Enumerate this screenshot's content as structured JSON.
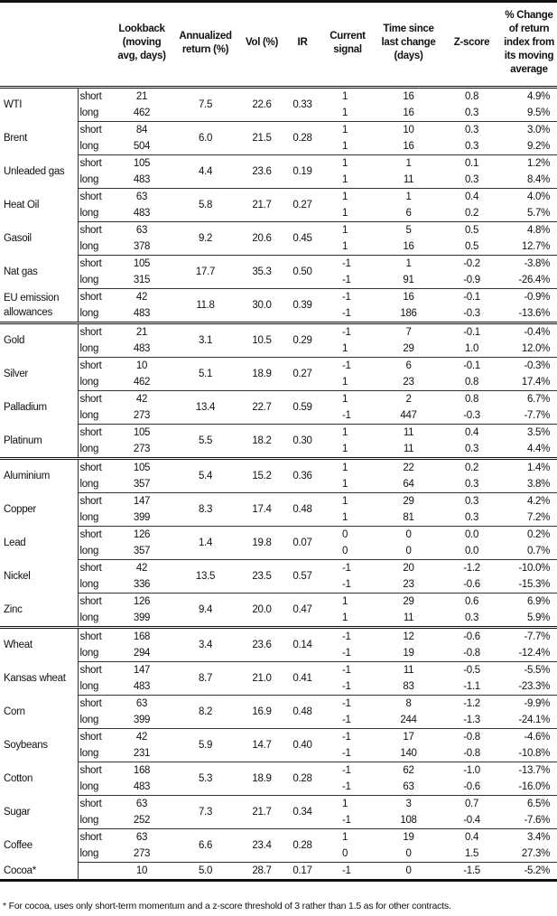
{
  "headers": [
    "",
    "",
    "Lookback (moving avg, days)",
    "Annualized return (%)",
    "Vol (%)",
    "IR",
    "Current signal",
    "Time since last change (days)",
    "Z-score",
    "% Change of return index from its moving average"
  ],
  "groups": [
    [
      {
        "name": "WTI",
        "ann": "7.5",
        "vol": "22.6",
        "ir": "0.33",
        "rows": [
          {
            "kind": "short",
            "lookback": "21",
            "signal": "1",
            "time": "16",
            "z": "0.8",
            "pct": "4.9%"
          },
          {
            "kind": "long",
            "lookback": "462",
            "signal": "1",
            "time": "16",
            "z": "0.3",
            "pct": "9.5%"
          }
        ]
      },
      {
        "name": "Brent",
        "ann": "6.0",
        "vol": "21.5",
        "ir": "0.28",
        "rows": [
          {
            "kind": "short",
            "lookback": "84",
            "signal": "1",
            "time": "10",
            "z": "0.3",
            "pct": "3.0%"
          },
          {
            "kind": "long",
            "lookback": "504",
            "signal": "1",
            "time": "16",
            "z": "0.3",
            "pct": "9.2%"
          }
        ]
      },
      {
        "name": "Unleaded gas",
        "ann": "4.4",
        "vol": "23.6",
        "ir": "0.19",
        "rows": [
          {
            "kind": "short",
            "lookback": "105",
            "signal": "1",
            "time": "1",
            "z": "0.1",
            "pct": "1.2%"
          },
          {
            "kind": "long",
            "lookback": "483",
            "signal": "1",
            "time": "11",
            "z": "0.3",
            "pct": "8.4%"
          }
        ]
      },
      {
        "name": "Heat Oil",
        "ann": "5.8",
        "vol": "21.7",
        "ir": "0.27",
        "rows": [
          {
            "kind": "short",
            "lookback": "63",
            "signal": "1",
            "time": "1",
            "z": "0.4",
            "pct": "4.0%"
          },
          {
            "kind": "long",
            "lookback": "483",
            "signal": "1",
            "time": "6",
            "z": "0.2",
            "pct": "5.7%"
          }
        ]
      },
      {
        "name": "Gasoil",
        "ann": "9.2",
        "vol": "20.6",
        "ir": "0.45",
        "rows": [
          {
            "kind": "short",
            "lookback": "63",
            "signal": "1",
            "time": "5",
            "z": "0.5",
            "pct": "4.8%"
          },
          {
            "kind": "long",
            "lookback": "378",
            "signal": "1",
            "time": "16",
            "z": "0.5",
            "pct": "12.7%"
          }
        ]
      },
      {
        "name": "Nat gas",
        "ann": "17.7",
        "vol": "35.3",
        "ir": "0.50",
        "rows": [
          {
            "kind": "short",
            "lookback": "105",
            "signal": "-1",
            "time": "1",
            "z": "-0.2",
            "pct": "-3.8%"
          },
          {
            "kind": "long",
            "lookback": "315",
            "signal": "-1",
            "time": "91",
            "z": "-0.9",
            "pct": "-26.4%"
          }
        ]
      },
      {
        "name": "EU emission allowances",
        "ann": "11.8",
        "vol": "30.0",
        "ir": "0.39",
        "rows": [
          {
            "kind": "short",
            "lookback": "42",
            "signal": "-1",
            "time": "16",
            "z": "-0.1",
            "pct": "-0.9%"
          },
          {
            "kind": "long",
            "lookback": "483",
            "signal": "-1",
            "time": "186",
            "z": "-0.3",
            "pct": "-13.6%"
          }
        ]
      }
    ],
    [
      {
        "name": "Gold",
        "ann": "3.1",
        "vol": "10.5",
        "ir": "0.29",
        "rows": [
          {
            "kind": "short",
            "lookback": "21",
            "signal": "-1",
            "time": "7",
            "z": "-0.1",
            "pct": "-0.4%"
          },
          {
            "kind": "long",
            "lookback": "483",
            "signal": "1",
            "time": "29",
            "z": "1.0",
            "pct": "12.0%"
          }
        ]
      },
      {
        "name": "Silver",
        "ann": "5.1",
        "vol": "18.9",
        "ir": "0.27",
        "rows": [
          {
            "kind": "short",
            "lookback": "10",
            "signal": "-1",
            "time": "6",
            "z": "-0.1",
            "pct": "-0.3%"
          },
          {
            "kind": "long",
            "lookback": "462",
            "signal": "1",
            "time": "23",
            "z": "0.8",
            "pct": "17.4%"
          }
        ]
      },
      {
        "name": "Palladium",
        "ann": "13.4",
        "vol": "22.7",
        "ir": "0.59",
        "rows": [
          {
            "kind": "short",
            "lookback": "42",
            "signal": "1",
            "time": "2",
            "z": "0.8",
            "pct": "6.7%"
          },
          {
            "kind": "long",
            "lookback": "273",
            "signal": "-1",
            "time": "447",
            "z": "-0.3",
            "pct": "-7.7%"
          }
        ]
      },
      {
        "name": "Platinum",
        "ann": "5.5",
        "vol": "18.2",
        "ir": "0.30",
        "rows": [
          {
            "kind": "short",
            "lookback": "105",
            "signal": "1",
            "time": "11",
            "z": "0.4",
            "pct": "3.5%"
          },
          {
            "kind": "long",
            "lookback": "273",
            "signal": "1",
            "time": "11",
            "z": "0.3",
            "pct": "4.4%"
          }
        ]
      }
    ],
    [
      {
        "name": "Aluminium",
        "ann": "5.4",
        "vol": "15.2",
        "ir": "0.36",
        "rows": [
          {
            "kind": "short",
            "lookback": "105",
            "signal": "1",
            "time": "22",
            "z": "0.2",
            "pct": "1.4%"
          },
          {
            "kind": "long",
            "lookback": "357",
            "signal": "1",
            "time": "64",
            "z": "0.3",
            "pct": "3.8%"
          }
        ]
      },
      {
        "name": "Copper",
        "ann": "8.3",
        "vol": "17.4",
        "ir": "0.48",
        "rows": [
          {
            "kind": "short",
            "lookback": "147",
            "signal": "1",
            "time": "29",
            "z": "0.3",
            "pct": "4.2%"
          },
          {
            "kind": "long",
            "lookback": "399",
            "signal": "1",
            "time": "81",
            "z": "0.3",
            "pct": "7.2%"
          }
        ]
      },
      {
        "name": "Lead",
        "ann": "1.4",
        "vol": "19.8",
        "ir": "0.07",
        "rows": [
          {
            "kind": "short",
            "lookback": "126",
            "signal": "0",
            "time": "0",
            "z": "0.0",
            "pct": "0.2%"
          },
          {
            "kind": "long",
            "lookback": "357",
            "signal": "0",
            "time": "0",
            "z": "0.0",
            "pct": "0.7%"
          }
        ]
      },
      {
        "name": "Nickel",
        "ann": "13.5",
        "vol": "23.5",
        "ir": "0.57",
        "rows": [
          {
            "kind": "short",
            "lookback": "42",
            "signal": "-1",
            "time": "20",
            "z": "-1.2",
            "pct": "-10.0%"
          },
          {
            "kind": "long",
            "lookback": "336",
            "signal": "-1",
            "time": "23",
            "z": "-0.6",
            "pct": "-15.3%"
          }
        ]
      },
      {
        "name": "Zinc",
        "ann": "9.4",
        "vol": "20.0",
        "ir": "0.47",
        "rows": [
          {
            "kind": "short",
            "lookback": "126",
            "signal": "1",
            "time": "29",
            "z": "0.6",
            "pct": "6.9%"
          },
          {
            "kind": "long",
            "lookback": "399",
            "signal": "1",
            "time": "11",
            "z": "0.3",
            "pct": "5.9%"
          }
        ]
      }
    ],
    [
      {
        "name": "Wheat",
        "ann": "3.4",
        "vol": "23.6",
        "ir": "0.14",
        "rows": [
          {
            "kind": "short",
            "lookback": "168",
            "signal": "-1",
            "time": "12",
            "z": "-0.6",
            "pct": "-7.7%"
          },
          {
            "kind": "long",
            "lookback": "294",
            "signal": "-1",
            "time": "19",
            "z": "-0.8",
            "pct": "-12.4%"
          }
        ]
      },
      {
        "name": "Kansas wheat",
        "ann": "8.7",
        "vol": "21.0",
        "ir": "0.41",
        "rows": [
          {
            "kind": "short",
            "lookback": "147",
            "signal": "-1",
            "time": "11",
            "z": "-0.5",
            "pct": "-5.5%"
          },
          {
            "kind": "long",
            "lookback": "483",
            "signal": "-1",
            "time": "83",
            "z": "-1.1",
            "pct": "-23.3%"
          }
        ]
      },
      {
        "name": "Corn",
        "ann": "8.2",
        "vol": "16.9",
        "ir": "0.48",
        "rows": [
          {
            "kind": "short",
            "lookback": "63",
            "signal": "-1",
            "time": "8",
            "z": "-1.2",
            "pct": "-9.9%"
          },
          {
            "kind": "long",
            "lookback": "399",
            "signal": "-1",
            "time": "244",
            "z": "-1.3",
            "pct": "-24.1%"
          }
        ]
      },
      {
        "name": "Soybeans",
        "ann": "5.9",
        "vol": "14.7",
        "ir": "0.40",
        "rows": [
          {
            "kind": "short",
            "lookback": "42",
            "signal": "-1",
            "time": "17",
            "z": "-0.8",
            "pct": "-4.6%"
          },
          {
            "kind": "long",
            "lookback": "231",
            "signal": "-1",
            "time": "140",
            "z": "-0.8",
            "pct": "-10.8%"
          }
        ]
      },
      {
        "name": "Cotton",
        "ann": "5.3",
        "vol": "18.9",
        "ir": "0.28",
        "rows": [
          {
            "kind": "short",
            "lookback": "168",
            "signal": "-1",
            "time": "62",
            "z": "-1.0",
            "pct": "-13.7%"
          },
          {
            "kind": "long",
            "lookback": "483",
            "signal": "-1",
            "time": "63",
            "z": "-0.6",
            "pct": "-16.0%"
          }
        ]
      },
      {
        "name": "Sugar",
        "ann": "7.3",
        "vol": "21.7",
        "ir": "0.34",
        "rows": [
          {
            "kind": "short",
            "lookback": "63",
            "signal": "1",
            "time": "3",
            "z": "0.7",
            "pct": "6.5%"
          },
          {
            "kind": "long",
            "lookback": "252",
            "signal": "-1",
            "time": "108",
            "z": "-0.4",
            "pct": "-7.6%"
          }
        ]
      },
      {
        "name": "Coffee",
        "ann": "6.6",
        "vol": "23.4",
        "ir": "0.28",
        "rows": [
          {
            "kind": "short",
            "lookback": "63",
            "signal": "1",
            "time": "19",
            "z": "0.4",
            "pct": "3.4%"
          },
          {
            "kind": "long",
            "lookback": "273",
            "signal": "0",
            "time": "0",
            "z": "1.5",
            "pct": "27.3%"
          }
        ]
      },
      {
        "name": "Cocoa*",
        "ann": "5.0",
        "vol": "28.7",
        "ir": "0.17",
        "rows": [
          {
            "kind": "",
            "lookback": "10",
            "signal": "-1",
            "time": "0",
            "z": "-1.5",
            "pct": "-5.2%"
          }
        ]
      }
    ]
  ],
  "footnote": "* For cocoa, uses only short-term momentum and a z-score threshold of 3 rather than 1.5 as for other contracts."
}
